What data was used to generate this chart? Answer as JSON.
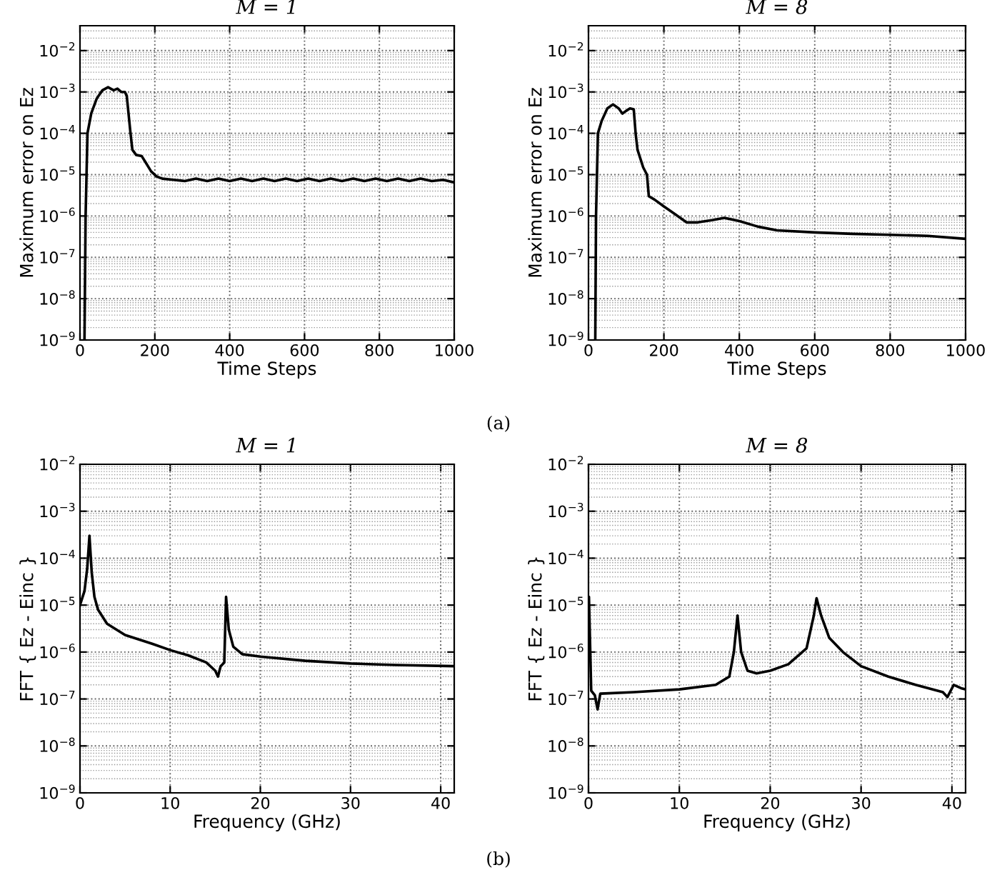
{
  "chart_data": [
    {
      "type": "line",
      "title": "M = 1",
      "xlabel": "Time Steps",
      "ylabel": "Maximum error on Ez",
      "log": "y",
      "grid": true,
      "xlim": [
        0,
        1000
      ],
      "xticks": [
        0,
        200,
        400,
        600,
        800,
        1000
      ],
      "ylim": [
        1e-09,
        0.04
      ],
      "yticks": [
        {
          "value": 1e-09,
          "label": "10$^{−9}$"
        },
        {
          "value": 1e-08,
          "label": "10$^{−8}$"
        },
        {
          "value": 1e-07,
          "label": "10$^{−7}$"
        },
        {
          "value": 1e-06,
          "label": "10$^{−6}$"
        },
        {
          "value": 1e-05,
          "label": "10$^{−5}$"
        },
        {
          "value": 0.0001,
          "label": "10$^{−4}$"
        },
        {
          "value": 0.001,
          "label": "10$^{−3}$"
        },
        {
          "value": 0.01,
          "label": "10$^{−2}$"
        }
      ],
      "annotations": [
        "(a)"
      ],
      "series": [
        {
          "color": "#000000",
          "x": [
            12,
            15,
            20,
            30,
            45,
            60,
            75,
            90,
            100,
            110,
            120,
            125,
            135,
            140,
            150,
            165,
            175,
            190,
            205,
            220,
            250,
            280,
            310,
            340,
            370,
            400,
            430,
            460,
            490,
            520,
            550,
            580,
            610,
            640,
            670,
            700,
            730,
            760,
            790,
            820,
            850,
            880,
            910,
            940,
            970,
            1000
          ],
          "values": [
            1e-09,
            1e-06,
            0.0001,
            0.0003,
            0.0007,
            0.0011,
            0.0013,
            0.0011,
            0.0012,
            0.001,
            0.001,
            0.0008,
            0.0001,
            4e-05,
            3e-05,
            2.8e-05,
            2e-05,
            1.2e-05,
            9e-06,
            8e-06,
            7.5e-06,
            7e-06,
            8e-06,
            7e-06,
            8e-06,
            7e-06,
            8e-06,
            7e-06,
            8e-06,
            7e-06,
            8e-06,
            7e-06,
            8e-06,
            7e-06,
            8e-06,
            7e-06,
            8e-06,
            7e-06,
            8e-06,
            7e-06,
            8e-06,
            7e-06,
            8e-06,
            7e-06,
            7.5e-06,
            6.5e-06
          ]
        }
      ]
    },
    {
      "type": "line",
      "title": "M = 8",
      "xlabel": "Time Steps",
      "ylabel": "Maximum error on Ez",
      "log": "y",
      "grid": true,
      "xlim": [
        0,
        1000
      ],
      "xticks": [
        0,
        200,
        400,
        600,
        800,
        1000
      ],
      "ylim": [
        1e-09,
        0.04
      ],
      "yticks": [
        {
          "value": 1e-09,
          "label": "10$^{−9}$"
        },
        {
          "value": 1e-08,
          "label": "10$^{−8}$"
        },
        {
          "value": 1e-07,
          "label": "10$^{−7}$"
        },
        {
          "value": 1e-06,
          "label": "10$^{−6}$"
        },
        {
          "value": 1e-05,
          "label": "10$^{−5}$"
        },
        {
          "value": 0.0001,
          "label": "10$^{−4}$"
        },
        {
          "value": 0.001,
          "label": "10$^{−3}$"
        },
        {
          "value": 0.01,
          "label": "10$^{−2}$"
        }
      ],
      "series": [
        {
          "color": "#000000",
          "x": [
            18,
            20,
            25,
            35,
            50,
            65,
            80,
            90,
            100,
            110,
            120,
            125,
            130,
            145,
            155,
            160,
            175,
            200,
            230,
            260,
            290,
            330,
            360,
            400,
            450,
            500,
            600,
            700,
            800,
            900,
            1000
          ],
          "values": [
            1e-09,
            1e-06,
            0.0001,
            0.0002,
            0.0004,
            0.0005,
            0.0004,
            0.0003,
            0.00035,
            0.0004,
            0.00038,
            0.0001,
            4e-05,
            1.5e-05,
            1e-05,
            3e-06,
            2.5e-06,
            1.7e-06,
            1.1e-06,
            7e-07,
            7e-07,
            8e-07,
            9e-07,
            7.5e-07,
            5.5e-07,
            4.5e-07,
            4e-07,
            3.7e-07,
            3.5e-07,
            3.3e-07,
            2.8e-07
          ]
        }
      ]
    },
    {
      "type": "line",
      "title": "M = 1",
      "xlabel": "Frequency (GHz)",
      "ylabel": "FFT { Ez - Einc }",
      "log": "y",
      "grid": true,
      "xlim": [
        0,
        41.5
      ],
      "xticks": [
        0,
        10,
        20,
        30,
        40
      ],
      "ylim": [
        1e-09,
        0.01
      ],
      "yticks": [
        {
          "value": 1e-09,
          "label": "10$^{−9}$"
        },
        {
          "value": 1e-08,
          "label": "10$^{−8}$"
        },
        {
          "value": 1e-07,
          "label": "10$^{−7}$"
        },
        {
          "value": 1e-06,
          "label": "10$^{−6}$"
        },
        {
          "value": 1e-05,
          "label": "10$^{−5}$"
        },
        {
          "value": 0.0001,
          "label": "10$^{−4}$"
        },
        {
          "value": 0.001,
          "label": "10$^{−3}$"
        },
        {
          "value": 0.01,
          "label": "10$^{−2}$"
        }
      ],
      "annotations": [
        "(b)"
      ],
      "series": [
        {
          "color": "#000000",
          "x": [
            0,
            0.5,
            0.8,
            1.05,
            1.3,
            1.6,
            2,
            3,
            5,
            8,
            10,
            12,
            14,
            15,
            15.3,
            15.6,
            16,
            16.2,
            16.5,
            17,
            18,
            20,
            25,
            30,
            35,
            41.5
          ],
          "values": [
            1e-05,
            2e-05,
            6e-05,
            0.0003,
            5e-05,
            1.5e-05,
            8e-06,
            4e-06,
            2.3e-06,
            1.5e-06,
            1.1e-06,
            8.5e-07,
            6e-07,
            4e-07,
            3e-07,
            5e-07,
            6e-07,
            1.5e-05,
            3e-06,
            1.3e-06,
            9e-07,
            8e-07,
            6.5e-07,
            5.7e-07,
            5.3e-07,
            5e-07
          ]
        }
      ]
    },
    {
      "type": "line",
      "title": "M = 8",
      "xlabel": "Frequency (GHz)",
      "ylabel": "FFT { Ez - Einc }",
      "log": "y",
      "grid": true,
      "xlim": [
        0,
        41.5
      ],
      "xticks": [
        0,
        10,
        20,
        30,
        40
      ],
      "ylim": [
        1e-09,
        0.01
      ],
      "yticks": [
        {
          "value": 1e-09,
          "label": "10$^{−9}$"
        },
        {
          "value": 1e-08,
          "label": "10$^{−8}$"
        },
        {
          "value": 1e-07,
          "label": "10$^{−7}$"
        },
        {
          "value": 1e-06,
          "label": "10$^{−6}$"
        },
        {
          "value": 1e-05,
          "label": "10$^{−5}$"
        },
        {
          "value": 0.0001,
          "label": "10$^{−4}$"
        },
        {
          "value": 0.001,
          "label": "10$^{−3}$"
        },
        {
          "value": 0.01,
          "label": "10$^{−2}$"
        }
      ],
      "series": [
        {
          "color": "#000000",
          "x": [
            0,
            0.05,
            0.3,
            0.7,
            1,
            1.3,
            5,
            10,
            14,
            15.5,
            16,
            16.4,
            16.8,
            17.5,
            18.5,
            20,
            22,
            24,
            24.8,
            25.1,
            25.6,
            26.5,
            28,
            30,
            33,
            36,
            39,
            39.5,
            40.2,
            41,
            41.5
          ],
          "values": [
            1e-05,
            1.5e-05,
            1.5e-07,
            1.2e-07,
            6e-08,
            1.3e-07,
            1.4e-07,
            1.6e-07,
            2e-07,
            3e-07,
            1e-06,
            6e-06,
            1e-06,
            4e-07,
            3.5e-07,
            4e-07,
            5.5e-07,
            1.2e-06,
            6e-06,
            1.4e-05,
            6e-06,
            2e-06,
            1e-06,
            5e-07,
            3e-07,
            2e-07,
            1.4e-07,
            1.1e-07,
            2e-07,
            1.7e-07,
            1.6e-07
          ]
        }
      ]
    }
  ]
}
